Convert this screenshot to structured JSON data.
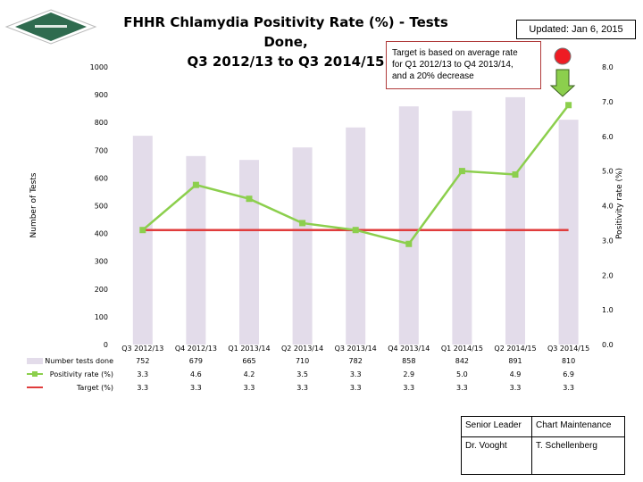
{
  "header": {
    "title_line1": "FHHR Chlamydia Positivity Rate (%) - Tests Done,",
    "title_line2": "Q3 2012/13 to Q3 2014/15",
    "updated": "Updated: Jan 6, 2015"
  },
  "target_note": {
    "line1": "Target is based on average rate",
    "line2": "for Q1 2012/13 to Q4 2013/14,",
    "line3": "and a 20% decrease"
  },
  "chart_data": {
    "type": "bar",
    "categories": [
      "Q3 2012/13",
      "Q4 2012/13",
      "Q1 2013/14",
      "Q2 2013/14",
      "Q3 2013/14",
      "Q4 2013/14",
      "Q1 2014/15",
      "Q2 2014/15",
      "Q3 2014/15"
    ],
    "series": [
      {
        "name": "Number tests done",
        "type": "bar",
        "axis": "left",
        "values": [
          752,
          679,
          665,
          710,
          782,
          858,
          842,
          891,
          810
        ]
      },
      {
        "name": "Positivity rate (%)",
        "type": "line",
        "axis": "right",
        "values": [
          3.3,
          4.6,
          4.2,
          3.5,
          3.3,
          2.9,
          5.0,
          4.9,
          6.9
        ]
      },
      {
        "name": "Target (%)",
        "type": "line",
        "axis": "right",
        "values": [
          3.3,
          3.3,
          3.3,
          3.3,
          3.3,
          3.3,
          3.3,
          3.3,
          3.3
        ]
      }
    ],
    "table_values": {
      "Number tests done": [
        "752",
        "679",
        "665",
        "710",
        "782",
        "858",
        "842",
        "891",
        "810"
      ],
      "Positivity rate (%)": [
        "3.3",
        "4.6",
        "4.2",
        "3.5",
        "3.3",
        "2.9",
        "5.0",
        "4.9",
        "6.9"
      ],
      "Target (%)": [
        "3.3",
        "3.3",
        "3.3",
        "3.3",
        "3.3",
        "3.3",
        "3.3",
        "3.3",
        "3.3"
      ]
    },
    "ylabel": "Number of Tests",
    "y2label": "Positivity rate (%)",
    "ylim": [
      0,
      1000
    ],
    "y2lim": [
      0,
      8.0
    ],
    "yticks": [
      0,
      100,
      200,
      300,
      400,
      500,
      600,
      700,
      800,
      900,
      1000
    ],
    "y2ticks": [
      "0.0",
      "1.0",
      "2.0",
      "3.0",
      "4.0",
      "5.0",
      "6.0",
      "7.0",
      "8.0"
    ],
    "grid": false,
    "legend": "data table below plot",
    "colors": {
      "bar": "#e3dcea",
      "rate": "#8ccf4d",
      "target": "#e03c3c"
    }
  },
  "indicators": {
    "red_circle": "#ee1c24",
    "green_arrow": "#8ccf4d"
  },
  "maintenance": {
    "senior_leader_label": "Senior Leader",
    "senior_leader_name": "Dr. Vooght",
    "chart_maintenance_label": "Chart Maintenance",
    "chart_maintenance_name": "T. Schellenberg"
  }
}
